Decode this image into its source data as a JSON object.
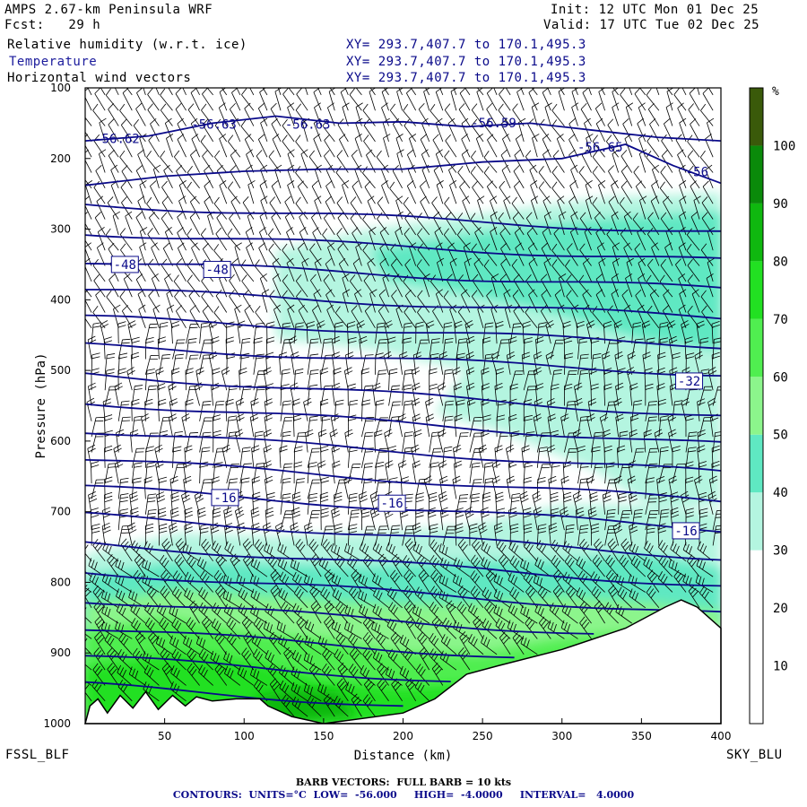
{
  "header": {
    "title": "AMPS 2.67-km Peninsula WRF",
    "forecast": "Fcst:   29 h",
    "init": "Init: 12 UTC Mon 01 Dec 25",
    "valid": "Valid: 17 UTC Tue 02 Dec 25",
    "fields": [
      {
        "name": "Relative humidity (w.r.t. ice)",
        "xy": "XY= 293.7,407.7 to 170.1,495.3",
        "color": "#000000"
      },
      {
        "name": "Temperature",
        "xy": "XY= 293.7,407.7 to 170.1,495.3",
        "color": "#1b1b9c"
      },
      {
        "name": "Horizontal wind vectors",
        "xy": "XY= 293.7,407.7 to 170.1,495.3",
        "color": "#000000"
      }
    ]
  },
  "chart_data": {
    "type": "heatmap",
    "xlabel": "Distance (km)",
    "ylabel": "Pressure (hPa)",
    "xlim": [
      0,
      400
    ],
    "ylim": [
      1000,
      100
    ],
    "x_ticks": [
      50,
      100,
      150,
      200,
      250,
      300,
      350,
      400
    ],
    "y_ticks": [
      100,
      200,
      300,
      400,
      500,
      600,
      700,
      800,
      900,
      1000
    ],
    "left_endpoint": "FSSL_BLF",
    "right_endpoint": "SKY_BLU",
    "colorbar": {
      "unit": "%",
      "ticks": [
        10,
        20,
        30,
        40,
        50,
        60,
        70,
        80,
        90,
        100
      ],
      "bins": [
        {
          "from": 0,
          "to": 30,
          "color": "#ffffff"
        },
        {
          "from": 30,
          "to": 40,
          "color": "#b4f5e0"
        },
        {
          "from": 40,
          "to": 50,
          "color": "#5fe8c2"
        },
        {
          "from": 50,
          "to": 60,
          "color": "#8cf58c"
        },
        {
          "from": 60,
          "to": 70,
          "color": "#50ee50"
        },
        {
          "from": 70,
          "to": 80,
          "color": "#22e022"
        },
        {
          "from": 80,
          "to": 90,
          "color": "#0fb80f"
        },
        {
          "from": 90,
          "to": 100,
          "color": "#0a8a0a"
        },
        {
          "from": 100,
          "to": 110,
          "color": "#3a5a0a"
        }
      ]
    },
    "temperature_contours": {
      "units": "°C",
      "low": -56.0,
      "high": -4.0,
      "interval": 4.0,
      "labels": [
        {
          "text": "-48",
          "x": 25,
          "p": 350
        },
        {
          "text": "-48",
          "x": 83,
          "p": 357
        },
        {
          "text": "-32",
          "x": 380,
          "p": 515
        },
        {
          "text": "-16",
          "x": 88,
          "p": 680
        },
        {
          "text": "-16",
          "x": 193,
          "p": 688
        },
        {
          "text": "-16",
          "x": 378,
          "p": 727
        }
      ],
      "lows": [
        {
          "text": "-56.62",
          "x": 20,
          "p": 178
        },
        {
          "text": "-56.63",
          "x": 81,
          "p": 158
        },
        {
          "text": "-56.63",
          "x": 140,
          "p": 158
        },
        {
          "text": "-56.59",
          "x": 257,
          "p": 156
        },
        {
          "text": "-56.65",
          "x": 324,
          "p": 190
        },
        {
          "text": "-56",
          "x": 385,
          "p": 225
        }
      ]
    },
    "terrain": [
      [
        0,
        1000
      ],
      [
        3,
        975
      ],
      [
        8,
        965
      ],
      [
        14,
        985
      ],
      [
        22,
        960
      ],
      [
        30,
        978
      ],
      [
        38,
        955
      ],
      [
        46,
        980
      ],
      [
        55,
        960
      ],
      [
        63,
        975
      ],
      [
        70,
        962
      ],
      [
        80,
        968
      ],
      [
        95,
        965
      ],
      [
        110,
        965
      ],
      [
        115,
        975
      ],
      [
        130,
        990
      ],
      [
        150,
        1000
      ],
      [
        200,
        985
      ],
      [
        220,
        965
      ],
      [
        240,
        930
      ],
      [
        260,
        918
      ],
      [
        300,
        895
      ],
      [
        340,
        865
      ],
      [
        365,
        835
      ],
      [
        375,
        825
      ],
      [
        385,
        835
      ],
      [
        400,
        865
      ]
    ]
  },
  "footer": {
    "barb_note": "BARB VECTORS:  FULL BARB = 10 kts",
    "contours_note": "CONTOURS:  UNITS=°C  LOW=  -56.000     HIGH=  -4.0000     INTERVAL=   4.0000"
  }
}
